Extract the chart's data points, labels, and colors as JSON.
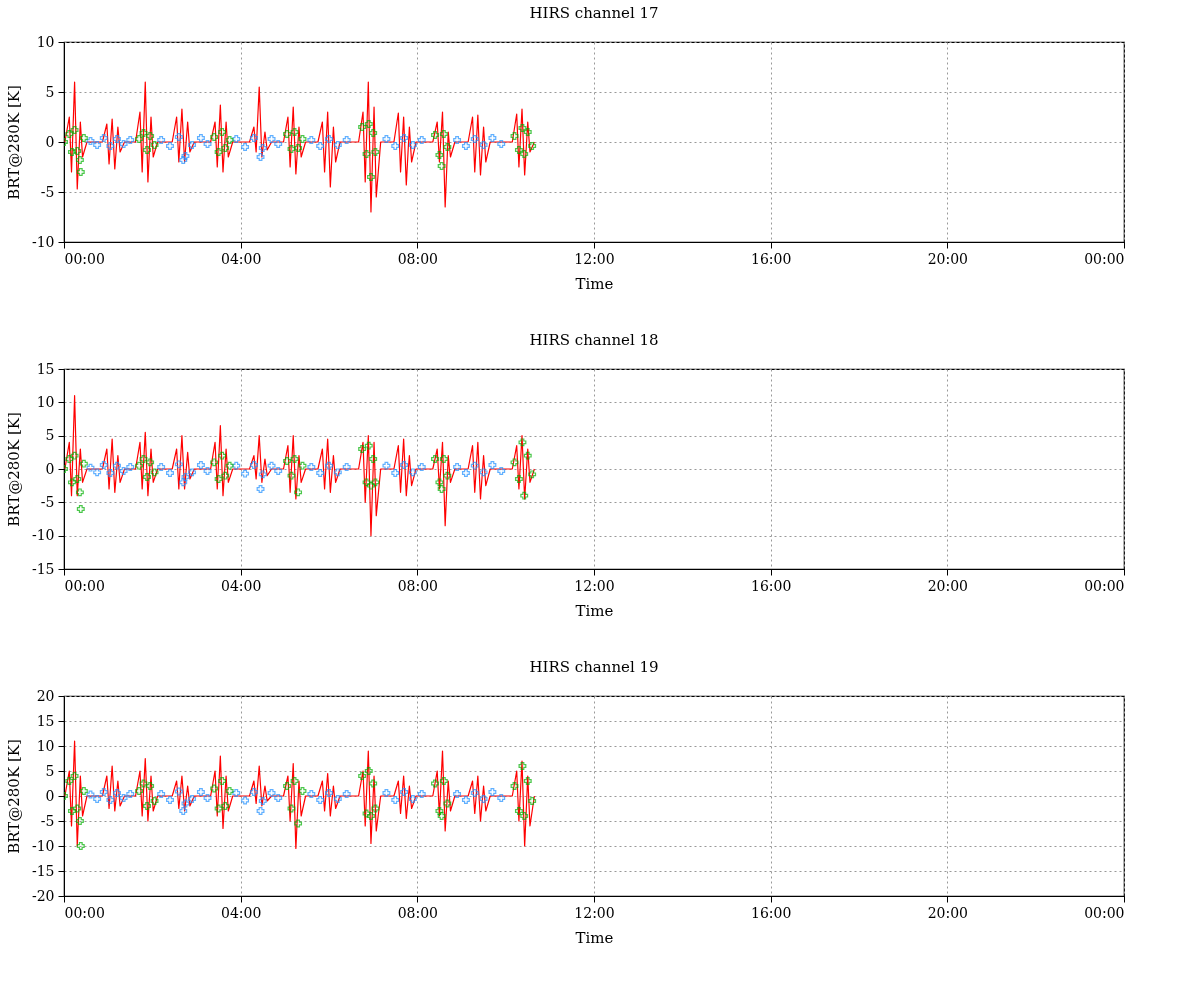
{
  "chart_data": [
    {
      "type": "scatter",
      "title": "HIRS channel 17",
      "xlabel": "Time",
      "ylabel": "BRT@280K [K]",
      "xlim": [
        0,
        24
      ],
      "xticks": [
        {
          "value": 0,
          "label": "00:00"
        },
        {
          "value": 4,
          "label": "04:00"
        },
        {
          "value": 8,
          "label": "08:00"
        },
        {
          "value": 12,
          "label": "12:00"
        },
        {
          "value": 16,
          "label": "16:00"
        },
        {
          "value": 20,
          "label": "20:00"
        },
        {
          "value": 24,
          "label": "00:00"
        }
      ],
      "ylim": [
        -10,
        10
      ],
      "yticks": [
        -10,
        -5,
        0,
        5,
        10
      ],
      "grid": true,
      "series": [
        {
          "type": "line",
          "color": "#ff0000",
          "line_style": "solid",
          "x": [
            0.02,
            0.12,
            0.17,
            0.24,
            0.3,
            0.37,
            0.42,
            0.52,
            0.87,
            0.97,
            1.02,
            1.09,
            1.15,
            1.22,
            1.27,
            1.37,
            1.62,
            1.72,
            1.77,
            1.84,
            1.9,
            1.97,
            2.02,
            2.12,
            2.45,
            2.55,
            2.6,
            2.67,
            2.73,
            2.8,
            2.85,
            2.95,
            3.32,
            3.42,
            3.47,
            3.54,
            3.6,
            3.67,
            3.72,
            3.82,
            4.2,
            4.3,
            4.35,
            4.42,
            4.48,
            4.55,
            4.6,
            4.7,
            4.97,
            5.07,
            5.12,
            5.19,
            5.25,
            5.32,
            5.37,
            5.47,
            5.75,
            5.85,
            5.9,
            5.97,
            6.03,
            6.1,
            6.15,
            6.25,
            6.67,
            6.77,
            6.82,
            6.89,
            6.95,
            7.02,
            7.07,
            7.17,
            7.47,
            7.57,
            7.62,
            7.69,
            7.75,
            7.82,
            7.87,
            7.97,
            8.35,
            8.45,
            8.5,
            8.57,
            8.63,
            8.7,
            8.75,
            8.85,
            9.15,
            9.25,
            9.3,
            9.37,
            9.43,
            9.5,
            9.55,
            9.65,
            10.15,
            10.25,
            10.3,
            10.37,
            10.43,
            10.5,
            10.55,
            10.65
          ],
          "values": [
            0,
            2.5,
            -3,
            6,
            -4.7,
            2,
            -1.5,
            0,
            0,
            1.8,
            -2.2,
            2.3,
            -2.7,
            1.5,
            -1,
            0,
            0,
            3,
            -3,
            6,
            -4,
            2.5,
            -1.5,
            0,
            0,
            2.5,
            -2,
            3.3,
            -2,
            2,
            -1,
            0,
            0,
            2,
            -2.5,
            3.7,
            -3,
            2,
            -1.5,
            0,
            0,
            1.5,
            -1,
            5.5,
            -1.5,
            1,
            -0.8,
            0,
            0,
            2.5,
            -2.5,
            3.5,
            -3.2,
            1.5,
            -1.5,
            0,
            0,
            2,
            -3,
            3,
            -4.5,
            1.5,
            -2,
            0,
            0,
            3,
            -4,
            6,
            -7,
            3.5,
            -5.5,
            0,
            0,
            2.9,
            -3,
            2.5,
            -4.3,
            1.5,
            -2,
            0,
            0,
            2,
            -2,
            3,
            -6.5,
            1,
            -1.5,
            0,
            0,
            2.5,
            -3,
            2.7,
            -3.3,
            1.5,
            -2,
            0,
            0,
            2.8,
            -2.5,
            3.3,
            -3.3,
            2,
            -1,
            0
          ]
        },
        {
          "type": "scatter",
          "color": "#1f8fff",
          "marker": "cross",
          "x": [
            0.6,
            0.75,
            0.9,
            1.05,
            1.2,
            1.35,
            1.5,
            2.2,
            2.4,
            2.6,
            2.7,
            2.75,
            2.9,
            3.1,
            3.25,
            3.9,
            4.1,
            4.3,
            4.45,
            4.5,
            4.7,
            4.85,
            5.6,
            5.8,
            6.0,
            6.2,
            6.4,
            7.3,
            7.5,
            7.7,
            7.9,
            8.1,
            8.9,
            9.1,
            9.3,
            9.5,
            9.7,
            9.9
          ],
          "values": [
            0.1,
            -0.3,
            0.4,
            -0.4,
            0.3,
            -0.2,
            0.2,
            0.2,
            -0.4,
            0.5,
            -1.8,
            -1.4,
            -0.3,
            0.4,
            -0.2,
            0.3,
            -0.5,
            0.4,
            -1.5,
            -0.6,
            0.3,
            -0.2,
            0.2,
            -0.4,
            0.3,
            -0.3,
            0.2,
            0.3,
            -0.4,
            0.4,
            -0.3,
            0.2,
            0.2,
            -0.4,
            0.3,
            -0.3,
            0.4,
            -0.2
          ]
        },
        {
          "type": "scatter",
          "color": "#00b000",
          "marker": "cross",
          "x": [
            0.0,
            0.12,
            0.18,
            0.24,
            0.3,
            0.36,
            0.38,
            0.45,
            1.7,
            1.8,
            1.88,
            1.95,
            2.05,
            3.4,
            3.5,
            3.58,
            3.65,
            3.75,
            5.05,
            5.15,
            5.22,
            5.3,
            5.4,
            6.75,
            6.85,
            6.9,
            6.95,
            7.0,
            7.05,
            8.4,
            8.5,
            8.55,
            8.6,
            8.68,
            10.2,
            10.3,
            10.38,
            10.42,
            10.5,
            10.6
          ],
          "values": [
            0,
            0.8,
            -1.0,
            1.2,
            -0.9,
            -1.8,
            -3.0,
            0.4,
            0.3,
            0.9,
            -0.8,
            0.6,
            -0.3,
            0.5,
            -1.0,
            1.0,
            -0.6,
            0.2,
            0.8,
            -0.7,
            1.0,
            -0.6,
            0.3,
            1.5,
            -1.2,
            1.8,
            -3.5,
            0.9,
            -1.0,
            0.7,
            -1.3,
            -2.4,
            0.8,
            -0.5,
            0.6,
            -0.8,
            1.4,
            -1.2,
            1.0,
            -0.4
          ]
        }
      ]
    },
    {
      "type": "scatter",
      "title": "HIRS channel 18",
      "xlabel": "Time",
      "ylabel": "BRT@280K [K]",
      "xlim": [
        0,
        24
      ],
      "xticks": [
        {
          "value": 0,
          "label": "00:00"
        },
        {
          "value": 4,
          "label": "04:00"
        },
        {
          "value": 8,
          "label": "08:00"
        },
        {
          "value": 12,
          "label": "12:00"
        },
        {
          "value": 16,
          "label": "16:00"
        },
        {
          "value": 20,
          "label": "20:00"
        },
        {
          "value": 24,
          "label": "00:00"
        }
      ],
      "ylim": [
        -15,
        15
      ],
      "yticks": [
        -15,
        -10,
        -5,
        0,
        5,
        10,
        15
      ],
      "grid": true,
      "series": [
        {
          "type": "line",
          "color": "#ff0000",
          "line_style": "solid",
          "x": [
            0.02,
            0.12,
            0.17,
            0.24,
            0.3,
            0.37,
            0.42,
            0.52,
            0.87,
            0.97,
            1.02,
            1.09,
            1.15,
            1.22,
            1.27,
            1.37,
            1.62,
            1.72,
            1.77,
            1.84,
            1.9,
            1.97,
            2.02,
            2.12,
            2.45,
            2.55,
            2.6,
            2.67,
            2.73,
            2.8,
            2.85,
            2.95,
            3.32,
            3.42,
            3.47,
            3.54,
            3.6,
            3.67,
            3.72,
            3.82,
            4.2,
            4.3,
            4.35,
            4.42,
            4.48,
            4.55,
            4.6,
            4.7,
            4.97,
            5.07,
            5.12,
            5.19,
            5.25,
            5.32,
            5.37,
            5.47,
            5.75,
            5.85,
            5.9,
            5.97,
            6.03,
            6.1,
            6.15,
            6.25,
            6.67,
            6.77,
            6.82,
            6.89,
            6.95,
            7.02,
            7.07,
            7.17,
            7.47,
            7.57,
            7.62,
            7.69,
            7.75,
            7.82,
            7.87,
            7.97,
            8.35,
            8.45,
            8.5,
            8.57,
            8.63,
            8.7,
            8.75,
            8.85,
            9.15,
            9.25,
            9.3,
            9.37,
            9.43,
            9.5,
            9.55,
            9.65,
            10.15,
            10.25,
            10.3,
            10.37,
            10.43,
            10.5,
            10.55,
            10.65
          ],
          "values": [
            0,
            4,
            -4,
            11,
            -4,
            3,
            -2,
            0,
            0,
            3,
            -3,
            4.5,
            -3.5,
            2,
            -2,
            0,
            0,
            4,
            -3,
            5.5,
            -4,
            3,
            -2,
            0,
            0,
            3,
            -3,
            5,
            -3,
            2.5,
            -1.5,
            0,
            0,
            4,
            -3,
            6.5,
            -4,
            3,
            -2,
            0,
            0,
            2,
            -1.5,
            5,
            -2,
            1.5,
            -1,
            0,
            0,
            3.5,
            -3.5,
            5,
            -4.5,
            2,
            -2,
            0,
            0,
            3,
            -3,
            4.5,
            -3.5,
            2,
            -2,
            0,
            0,
            4,
            -5,
            5,
            -10,
            4,
            -7,
            0,
            0,
            3.5,
            -3.5,
            4.5,
            -4,
            2,
            -2.5,
            0,
            0,
            3,
            -3,
            4,
            -8.5,
            2,
            -2,
            0,
            0,
            3.5,
            -3.5,
            4,
            -4.5,
            2,
            -2.5,
            0,
            0,
            3.5,
            -3,
            5,
            -4.5,
            3,
            -2,
            0
          ]
        },
        {
          "type": "scatter",
          "color": "#1f8fff",
          "marker": "cross",
          "x": [
            0.6,
            0.75,
            0.9,
            1.05,
            1.2,
            1.35,
            1.5,
            2.2,
            2.4,
            2.6,
            2.7,
            2.75,
            2.9,
            3.1,
            3.25,
            3.9,
            4.1,
            4.3,
            4.45,
            4.5,
            4.7,
            4.85,
            5.6,
            5.8,
            6.0,
            6.2,
            6.4,
            7.3,
            7.5,
            7.7,
            7.9,
            8.1,
            8.9,
            9.1,
            9.3,
            9.5,
            9.7,
            9.9
          ],
          "values": [
            0.2,
            -0.5,
            0.6,
            -0.6,
            0.5,
            -0.3,
            0.3,
            0.3,
            -0.6,
            0.7,
            -2.0,
            -1.2,
            -0.5,
            0.6,
            -0.3,
            0.5,
            -0.7,
            0.6,
            -3.0,
            -0.8,
            0.5,
            -0.3,
            0.3,
            -0.6,
            0.5,
            -0.5,
            0.3,
            0.5,
            -0.6,
            0.6,
            -0.5,
            0.3,
            0.3,
            -0.6,
            0.5,
            -0.5,
            0.6,
            -0.3
          ]
        },
        {
          "type": "scatter",
          "color": "#00b000",
          "marker": "cross",
          "x": [
            0.0,
            0.12,
            0.18,
            0.24,
            0.3,
            0.36,
            0.38,
            0.45,
            1.7,
            1.8,
            1.88,
            1.95,
            2.05,
            3.4,
            3.5,
            3.58,
            3.65,
            3.75,
            5.05,
            5.15,
            5.22,
            5.3,
            5.4,
            6.75,
            6.85,
            6.9,
            6.95,
            7.0,
            7.05,
            8.4,
            8.5,
            8.55,
            8.6,
            8.68,
            10.2,
            10.3,
            10.38,
            10.42,
            10.5,
            10.6
          ],
          "values": [
            0,
            1.5,
            -2,
            2,
            -1.5,
            -3.5,
            -6,
            0.8,
            0.5,
            1.5,
            -1.2,
            1,
            -0.5,
            1,
            -1.5,
            2,
            -1,
            0.5,
            1.2,
            -1,
            1.5,
            -3.5,
            0.5,
            3,
            -2,
            3.5,
            -2.5,
            1.5,
            -2,
            1.5,
            -2,
            -3,
            1.5,
            -1,
            1,
            -1.5,
            4,
            -4,
            2,
            -0.8
          ]
        }
      ]
    },
    {
      "type": "scatter",
      "title": "HIRS channel 19",
      "xlabel": "Time",
      "ylabel": "BRT@280K [K]",
      "xlim": [
        0,
        24
      ],
      "xticks": [
        {
          "value": 0,
          "label": "00:00"
        },
        {
          "value": 4,
          "label": "04:00"
        },
        {
          "value": 8,
          "label": "08:00"
        },
        {
          "value": 12,
          "label": "12:00"
        },
        {
          "value": 16,
          "label": "16:00"
        },
        {
          "value": 20,
          "label": "20:00"
        },
        {
          "value": 24,
          "label": "00:00"
        }
      ],
      "ylim": [
        -20,
        20
      ],
      "yticks": [
        -20,
        -15,
        -10,
        -5,
        0,
        5,
        10,
        15,
        20
      ],
      "grid": true,
      "series": [
        {
          "type": "line",
          "color": "#ff0000",
          "line_style": "solid",
          "x": [
            0.02,
            0.12,
            0.17,
            0.24,
            0.3,
            0.37,
            0.42,
            0.52,
            0.87,
            0.97,
            1.02,
            1.09,
            1.15,
            1.22,
            1.27,
            1.37,
            1.62,
            1.72,
            1.77,
            1.84,
            1.9,
            1.97,
            2.02,
            2.12,
            2.45,
            2.55,
            2.6,
            2.67,
            2.73,
            2.8,
            2.85,
            2.95,
            3.32,
            3.42,
            3.47,
            3.54,
            3.6,
            3.67,
            3.72,
            3.82,
            4.2,
            4.3,
            4.35,
            4.42,
            4.48,
            4.55,
            4.6,
            4.7,
            4.97,
            5.07,
            5.12,
            5.19,
            5.25,
            5.32,
            5.37,
            5.47,
            5.75,
            5.85,
            5.9,
            5.97,
            6.03,
            6.1,
            6.15,
            6.25,
            6.67,
            6.77,
            6.82,
            6.89,
            6.95,
            7.02,
            7.07,
            7.17,
            7.47,
            7.57,
            7.62,
            7.69,
            7.75,
            7.82,
            7.87,
            7.97,
            8.35,
            8.45,
            8.5,
            8.57,
            8.63,
            8.7,
            8.75,
            8.85,
            9.15,
            9.25,
            9.3,
            9.37,
            9.43,
            9.5,
            9.55,
            9.65,
            10.15,
            10.25,
            10.3,
            10.37,
            10.43,
            10.5,
            10.55,
            10.65
          ],
          "values": [
            0,
            5,
            -6,
            11,
            -10,
            4,
            -4,
            0,
            0,
            4,
            -2.5,
            6,
            -3,
            3,
            -2,
            0,
            0,
            5,
            -4,
            7.5,
            -5,
            4,
            -3,
            0,
            0,
            3,
            -2.5,
            4,
            -3,
            2,
            -2,
            0,
            0,
            5,
            -4,
            8,
            -6.5,
            4,
            -3,
            0,
            0,
            3,
            -1.5,
            6,
            -2,
            2,
            -1,
            0,
            0,
            4,
            -5,
            6.5,
            -10.5,
            3,
            -4,
            0,
            0,
            3,
            -3,
            4.5,
            -4,
            2,
            -2.5,
            0,
            0,
            5,
            -6,
            9,
            -9.5,
            4,
            -7,
            0,
            0,
            3,
            -3.5,
            4,
            -4.5,
            2,
            -2.5,
            0,
            0,
            5,
            -4,
            9,
            -7,
            3,
            -3,
            0,
            0,
            3,
            -3.5,
            4,
            -5,
            2,
            -3,
            0,
            0,
            5,
            -5,
            7,
            -10,
            4,
            -6,
            0
          ]
        },
        {
          "type": "scatter",
          "color": "#1f8fff",
          "marker": "cross",
          "x": [
            0.6,
            0.75,
            0.9,
            1.05,
            1.2,
            1.35,
            1.5,
            2.2,
            2.4,
            2.6,
            2.7,
            2.75,
            2.9,
            3.1,
            3.25,
            3.9,
            4.1,
            4.3,
            4.45,
            4.5,
            4.7,
            4.85,
            5.6,
            5.8,
            6.0,
            6.2,
            6.4,
            7.3,
            7.5,
            7.7,
            7.9,
            8.1,
            8.9,
            9.1,
            9.3,
            9.5,
            9.7,
            9.9
          ],
          "values": [
            0.3,
            -0.6,
            0.8,
            -0.8,
            0.6,
            -0.4,
            0.4,
            0.4,
            -0.8,
            0.9,
            -3.0,
            -1.5,
            -0.6,
            0.8,
            -0.4,
            0.6,
            -0.9,
            0.8,
            -3.0,
            -1.0,
            0.6,
            -0.4,
            0.4,
            -0.8,
            0.6,
            -0.6,
            0.4,
            0.6,
            -0.8,
            0.8,
            -0.6,
            0.4,
            0.4,
            -0.8,
            0.6,
            -0.6,
            0.8,
            -0.4
          ]
        },
        {
          "type": "scatter",
          "color": "#00b000",
          "marker": "cross",
          "x": [
            0.0,
            0.12,
            0.18,
            0.24,
            0.3,
            0.36,
            0.38,
            0.45,
            1.7,
            1.8,
            1.88,
            1.95,
            2.05,
            3.4,
            3.5,
            3.58,
            3.65,
            3.75,
            5.05,
            5.15,
            5.22,
            5.3,
            5.4,
            6.75,
            6.85,
            6.9,
            6.95,
            7.0,
            7.05,
            8.4,
            8.5,
            8.55,
            8.6,
            8.68,
            10.2,
            10.3,
            10.38,
            10.42,
            10.5,
            10.6
          ],
          "values": [
            0,
            3,
            -3,
            4,
            -2.5,
            -5,
            -10,
            1,
            1,
            2.5,
            -2,
            2,
            -1,
            1.5,
            -2.5,
            3,
            -2,
            1,
            2,
            -2.5,
            3,
            -5.5,
            1,
            4,
            -3.5,
            5,
            -4,
            2.5,
            -2.5,
            2.5,
            -3,
            -4,
            3,
            -1.5,
            2,
            -3,
            6,
            -4,
            3,
            -1
          ]
        }
      ]
    }
  ]
}
